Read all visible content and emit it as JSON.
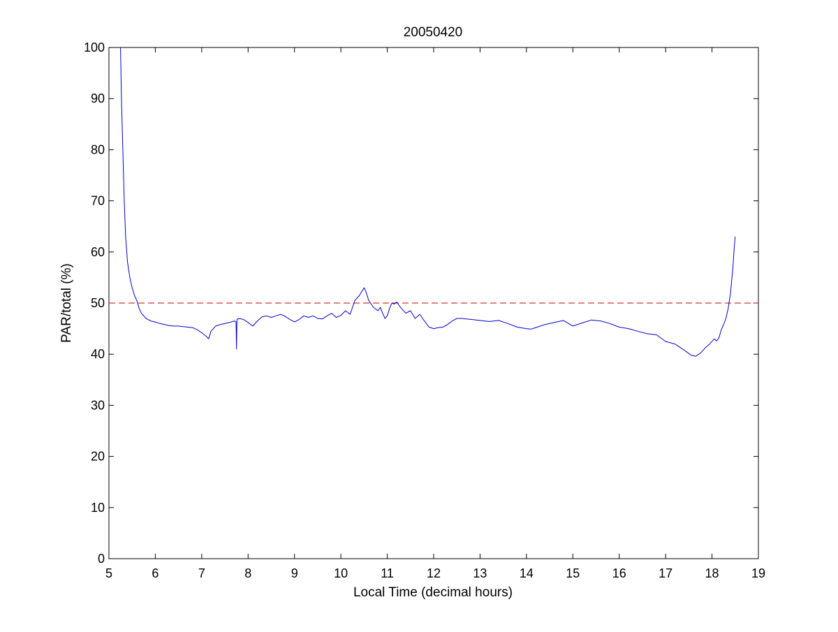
{
  "chart_data": {
    "type": "line",
    "title": "20050420",
    "xlabel": "Local Time (decimal hours)",
    "ylabel": "PAR/total (%)",
    "xlim": [
      5,
      19
    ],
    "ylim": [
      0,
      100
    ],
    "xticks": [
      5,
      6,
      7,
      8,
      9,
      10,
      11,
      12,
      13,
      14,
      15,
      16,
      17,
      18,
      19
    ],
    "yticks": [
      0,
      10,
      20,
      30,
      40,
      50,
      60,
      70,
      80,
      90,
      100
    ],
    "grid": false,
    "box": true,
    "reference_line": {
      "y": 50,
      "style": "dashed",
      "color": "#cc0000"
    },
    "series": [
      {
        "color": "#0000cc",
        "x": [
          5.25,
          5.27,
          5.3,
          5.33,
          5.36,
          5.4,
          5.45,
          5.5,
          5.55,
          5.6,
          5.65,
          5.7,
          5.75,
          5.8,
          5.9,
          6.0,
          6.1,
          6.2,
          6.3,
          6.4,
          6.5,
          6.6,
          6.7,
          6.8,
          6.9,
          7.0,
          7.1,
          7.15,
          7.2,
          7.3,
          7.4,
          7.5,
          7.6,
          7.7,
          7.74,
          7.75,
          7.76,
          7.8,
          7.9,
          8.0,
          8.1,
          8.2,
          8.3,
          8.4,
          8.5,
          8.6,
          8.7,
          8.8,
          8.9,
          9.0,
          9.1,
          9.2,
          9.3,
          9.4,
          9.5,
          9.6,
          9.7,
          9.8,
          9.9,
          10.0,
          10.1,
          10.2,
          10.3,
          10.4,
          10.5,
          10.55,
          10.6,
          10.7,
          10.8,
          10.85,
          10.9,
          10.95,
          11.0,
          11.05,
          11.1,
          11.15,
          11.2,
          11.3,
          11.4,
          11.5,
          11.6,
          11.7,
          11.8,
          11.9,
          12.0,
          12.1,
          12.2,
          12.3,
          12.4,
          12.5,
          12.6,
          12.8,
          13.0,
          13.2,
          13.4,
          13.6,
          13.8,
          14.0,
          14.1,
          14.2,
          14.4,
          14.6,
          14.8,
          15.0,
          15.2,
          15.4,
          15.6,
          15.8,
          16.0,
          16.2,
          16.4,
          16.6,
          16.8,
          17.0,
          17.2,
          17.4,
          17.55,
          17.65,
          17.75,
          17.85,
          17.95,
          18.05,
          18.1,
          18.15,
          18.2,
          18.25,
          18.3,
          18.35,
          18.4,
          18.45,
          18.48,
          18.5
        ],
        "y": [
          100.0,
          90.0,
          80.0,
          70.0,
          63.0,
          58.0,
          55.0,
          53.0,
          51.5,
          50.5,
          49.0,
          48.0,
          47.5,
          47.0,
          46.5,
          46.3,
          46.0,
          45.8,
          45.6,
          45.5,
          45.5,
          45.4,
          45.3,
          45.2,
          44.8,
          44.2,
          43.5,
          43.0,
          44.5,
          45.5,
          45.8,
          46.0,
          46.2,
          46.5,
          46.3,
          41.0,
          46.8,
          47.0,
          46.8,
          46.2,
          45.5,
          46.5,
          47.3,
          47.5,
          47.2,
          47.5,
          47.8,
          47.4,
          46.8,
          46.3,
          46.8,
          47.5,
          47.2,
          47.5,
          47.0,
          46.9,
          47.5,
          48.0,
          47.2,
          47.6,
          48.5,
          47.8,
          50.5,
          51.5,
          53.0,
          52.0,
          50.5,
          49.2,
          48.5,
          49.2,
          48.0,
          47.0,
          47.5,
          49.0,
          50.0,
          49.8,
          50.2,
          49.0,
          48.0,
          48.5,
          47.0,
          47.8,
          46.5,
          45.3,
          45.0,
          45.2,
          45.3,
          45.8,
          46.5,
          47.0,
          47.0,
          46.8,
          46.6,
          46.4,
          46.6,
          46.0,
          45.3,
          45.0,
          44.9,
          45.2,
          45.8,
          46.2,
          46.6,
          45.5,
          46.1,
          46.7,
          46.5,
          46.0,
          45.3,
          45.0,
          44.5,
          44.0,
          43.8,
          42.5,
          42.0,
          40.8,
          39.8,
          39.6,
          40.2,
          41.2,
          42.0,
          43.0,
          42.6,
          43.2,
          44.8,
          45.8,
          47.0,
          49.0,
          52.0,
          57.0,
          61.0,
          63.0
        ]
      }
    ]
  },
  "colors": {
    "line": "#0000cc",
    "reference": "#cc0000",
    "axes": "#000000",
    "background": "#ffffff"
  }
}
